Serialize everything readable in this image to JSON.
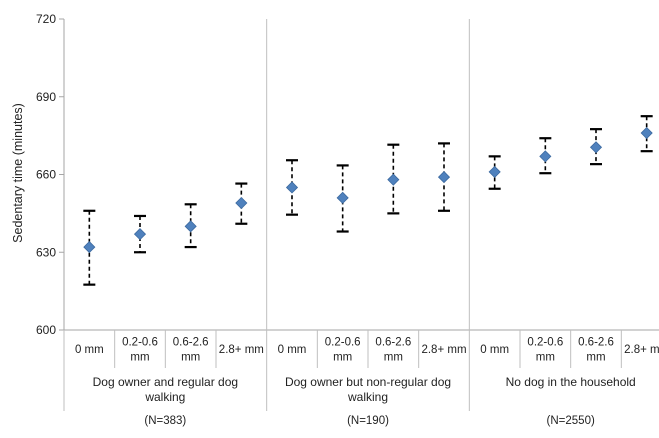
{
  "chart_data": {
    "type": "scatter",
    "ylabel": "Sedentary time (minutes)",
    "ylim": [
      600,
      720
    ],
    "yticks": [
      "600",
      "630",
      "660",
      "690",
      "720"
    ],
    "grid": false,
    "legend": "none",
    "marker_color": "#4f81bd",
    "groups": [
      {
        "label": "Dog owner and regular dog walking",
        "n_label": "(N=383)",
        "categories": [
          "0 mm",
          "0.2-0.6 mm",
          "0.6-2.6 mm",
          "2.8+ mm"
        ],
        "values": [
          632,
          637,
          640,
          649
        ],
        "lower": [
          617.5,
          630,
          632,
          641
        ],
        "upper": [
          646,
          644,
          648.5,
          656.5
        ]
      },
      {
        "label": "Dog owner but non-regular dog walking",
        "n_label": "(N=190)",
        "categories": [
          "0 mm",
          "0.2-0.6 mm",
          "0.6-2.6 mm",
          "2.8+ mm"
        ],
        "values": [
          655,
          651,
          658,
          659
        ],
        "lower": [
          644.5,
          638,
          645,
          646
        ],
        "upper": [
          665.5,
          663.5,
          671.5,
          672
        ]
      },
      {
        "label": "No dog in the household",
        "n_label": "(N=2550)",
        "categories": [
          "0 mm",
          "0.2-0.6 mm",
          "0.6-2.6 mm",
          "2.8+ mm"
        ],
        "values": [
          661,
          667,
          670.5,
          676
        ],
        "lower": [
          654.5,
          660.5,
          664,
          669
        ],
        "upper": [
          667,
          674,
          677.5,
          682.5
        ]
      }
    ]
  }
}
